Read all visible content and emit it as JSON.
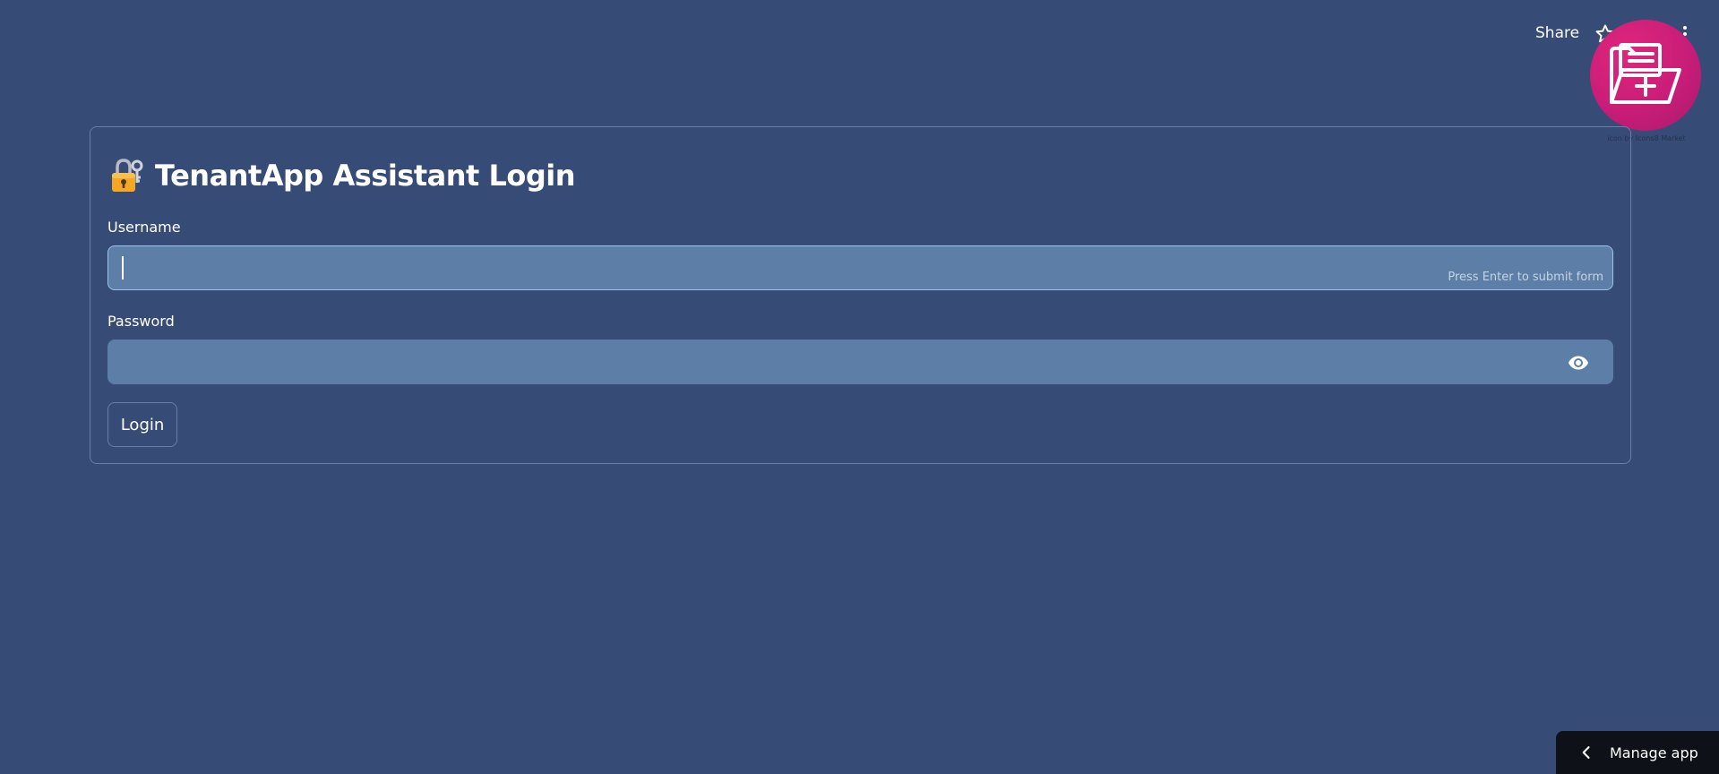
{
  "header": {
    "share_label": "Share",
    "icons": [
      "star-icon",
      "edit-icon",
      "more-vertical-icon"
    ],
    "logo_caption": "icon by Icons8 Market"
  },
  "form": {
    "title_emoji": "lock-with-key-icon",
    "title": "TenantApp Assistant Login",
    "username": {
      "label": "Username",
      "value": "",
      "placeholder": "",
      "hint": "Press Enter to submit form"
    },
    "password": {
      "label": "Password",
      "value": "",
      "placeholder": ""
    },
    "submit_label": "Login"
  },
  "footer": {
    "manage_label": "Manage app"
  },
  "colors": {
    "background": "#364b76",
    "input_fill": "#5c7ea7",
    "focus_border": "#9bc4f0",
    "logo_pink": "#d21f79",
    "manage_bar": "#0e1117"
  }
}
